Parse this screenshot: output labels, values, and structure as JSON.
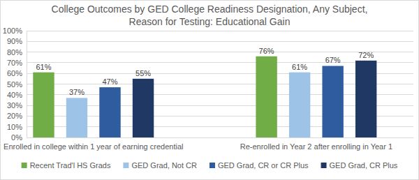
{
  "chart_data": {
    "type": "bar",
    "title": "College Outcomes by GED College Readiness Designation, Any Subject, Reason for Testing: Educational Gain",
    "categories": [
      "Enrolled in college within 1 year of earning credential",
      "Re-enrolled in Year 2 after enrolling in Year 1"
    ],
    "series": [
      {
        "name": "Recent Trad'l HS Grads",
        "color": "#70ad47",
        "values": [
          61,
          76
        ],
        "value_labels": [
          "61%",
          "76%"
        ]
      },
      {
        "name": "GED Grad, Not CR",
        "color": "#9dc3e6",
        "values": [
          37,
          61
        ],
        "value_labels": [
          "37%",
          "61%"
        ]
      },
      {
        "name": "GED Grad, CR or CR Plus",
        "color": "#2f5c9f",
        "values": [
          47,
          67
        ],
        "value_labels": [
          "47%",
          "67%"
        ]
      },
      {
        "name": "GED Grad, CR Plus",
        "color": "#203864",
        "values": [
          55,
          72
        ],
        "value_labels": [
          "55%",
          "72%"
        ]
      }
    ],
    "ylim": [
      0,
      100
    ],
    "yticks": [
      {
        "value": 0,
        "label": "0%"
      },
      {
        "value": 10,
        "label": "10%"
      },
      {
        "value": 20,
        "label": "20%"
      },
      {
        "value": 30,
        "label": "30%"
      },
      {
        "value": 40,
        "label": "40%"
      },
      {
        "value": 50,
        "label": "50%"
      },
      {
        "value": 60,
        "label": "60%"
      },
      {
        "value": 70,
        "label": "70%"
      },
      {
        "value": 80,
        "label": "80%"
      },
      {
        "value": 90,
        "label": "90%"
      },
      {
        "value": 100,
        "label": "100%"
      }
    ],
    "grid": true,
    "legend": "bottom",
    "data_labels": true
  }
}
